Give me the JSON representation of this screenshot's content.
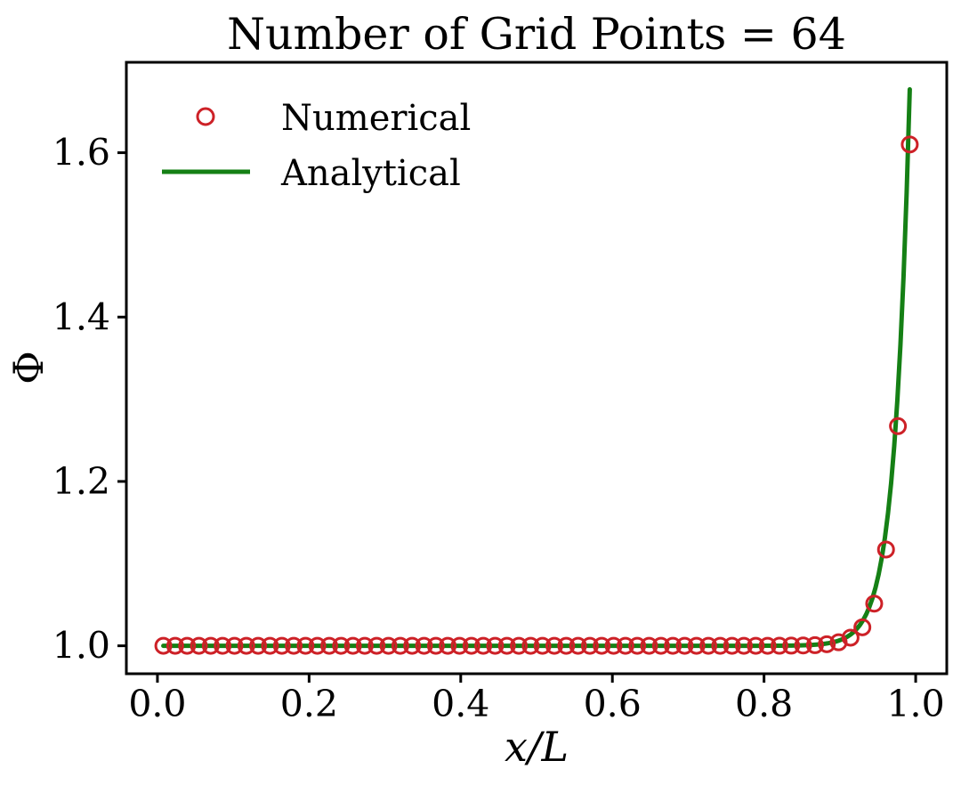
{
  "figure": {
    "title": "Number of Grid Points = 64",
    "xlabel": "x/L",
    "ylabel": "Φ",
    "background": "#ffffff",
    "frame_color": "#000000"
  },
  "legend": {
    "frame": false,
    "position": "upper-left",
    "entries": [
      {
        "label": "Numerical",
        "marker": "open-circle",
        "color": "#cd2127"
      },
      {
        "label": "Analytical",
        "marker": "line",
        "color": "#158015"
      }
    ]
  },
  "chart_data": {
    "type": "scatter",
    "title": "Number of Grid Points = 64",
    "xlabel": "x/L",
    "ylabel": "Φ",
    "grid": false,
    "xlim": [
      -0.041,
      1.041
    ],
    "ylim": [
      0.966,
      1.71
    ],
    "x_ticks": [
      0.0,
      0.2,
      0.4,
      0.6,
      0.8,
      1.0
    ],
    "y_ticks": [
      1.0,
      1.2,
      1.4,
      1.6
    ],
    "x_tick_labels": [
      "0.0",
      "0.2",
      "0.4",
      "0.6",
      "0.8",
      "1.0"
    ],
    "y_tick_labels": [
      "1.0",
      "1.2",
      "1.4",
      "1.6"
    ],
    "series": [
      {
        "name": "Numerical",
        "style": "scatter-open-circle",
        "color": "#cd2127",
        "n_points": 64,
        "x": [
          0.0078,
          0.0234,
          0.0391,
          0.0547,
          0.0703,
          0.0859,
          0.1016,
          0.1172,
          0.1328,
          0.1484,
          0.1641,
          0.1797,
          0.1953,
          0.2109,
          0.2266,
          0.2422,
          0.2578,
          0.2734,
          0.2891,
          0.3047,
          0.3203,
          0.3359,
          0.3516,
          0.3672,
          0.3828,
          0.3984,
          0.4141,
          0.4297,
          0.4453,
          0.4609,
          0.4766,
          0.4922,
          0.5078,
          0.5234,
          0.5391,
          0.5547,
          0.5703,
          0.5859,
          0.6016,
          0.6172,
          0.6328,
          0.6484,
          0.6641,
          0.6797,
          0.6953,
          0.7109,
          0.7266,
          0.7422,
          0.7578,
          0.7734,
          0.7891,
          0.8047,
          0.8203,
          0.8359,
          0.8516,
          0.8672,
          0.8828,
          0.8984,
          0.9141,
          0.9297,
          0.9453,
          0.9609,
          0.9766,
          0.9922
        ],
        "y": [
          1.0,
          1.0,
          1.0,
          1.0,
          1.0,
          1.0,
          1.0,
          1.0,
          1.0,
          1.0,
          1.0,
          1.0,
          1.0,
          1.0,
          1.0,
          1.0,
          1.0,
          1.0,
          1.0,
          1.0,
          1.0,
          1.0,
          1.0,
          1.0,
          1.0,
          1.0,
          1.0,
          1.0,
          1.0,
          1.0,
          1.0,
          1.0,
          1.0,
          1.0,
          1.0,
          1.0,
          1.0,
          1.0,
          1.0,
          1.0,
          1.0,
          1.0,
          1.0,
          1.0,
          1.0,
          1.0,
          1.0,
          1.0,
          1.0,
          1.0,
          1.0,
          1.0,
          1.0001,
          1.0002,
          1.0004,
          1.0008,
          1.0019,
          1.0043,
          1.0099,
          1.0225,
          1.0513,
          1.1171,
          1.2673,
          1.61
        ]
      },
      {
        "name": "Analytical",
        "style": "line",
        "color": "#158015",
        "line_width": 5,
        "model": {
          "formula": "phi(x) = 1 + (exp(Pe*x) - 1) / (exp(Pe) - 1)",
          "Pe": 50,
          "x_start": 0.0078,
          "x_end": 0.9922,
          "y_end": 1.677,
          "samples": 240
        }
      }
    ]
  }
}
